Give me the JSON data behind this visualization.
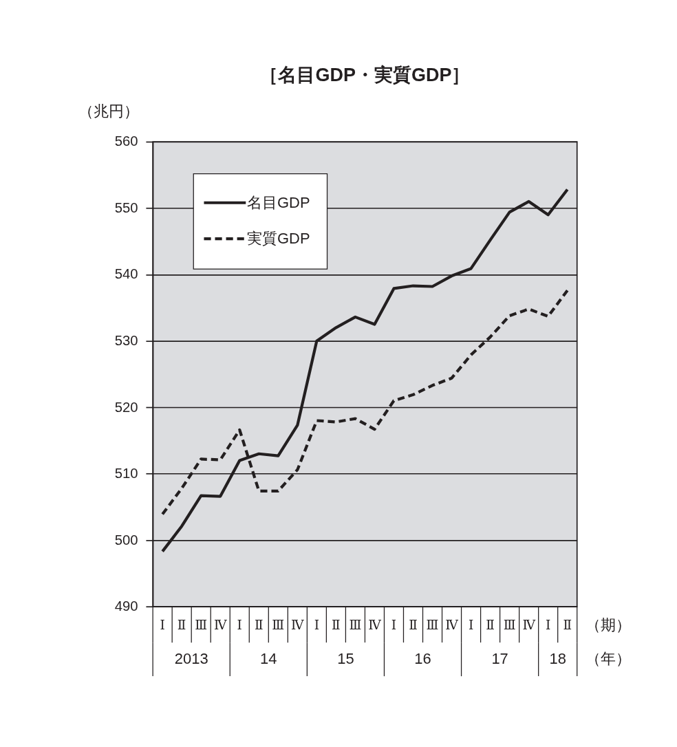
{
  "chart_data": {
    "type": "line",
    "title": "［名目GDP・実質GDP］",
    "ylabel": "（兆円）",
    "xlabel": "（期）",
    "categories": [
      "Ⅰ",
      "Ⅱ",
      "Ⅲ",
      "Ⅳ",
      "Ⅰ",
      "Ⅱ",
      "Ⅲ",
      "Ⅳ",
      "Ⅰ",
      "Ⅱ",
      "Ⅲ",
      "Ⅳ",
      "Ⅰ",
      "Ⅱ",
      "Ⅲ",
      "Ⅳ",
      "Ⅰ",
      "Ⅱ",
      "Ⅲ",
      "Ⅳ",
      "Ⅰ",
      "Ⅱ"
    ],
    "series": [
      {
        "name": "名目GDP",
        "color": "#231f20",
        "line_style": "solid",
        "values": [
          498.3,
          502.1,
          506.7,
          506.6,
          512.0,
          513.0,
          512.7,
          517.3,
          530.0,
          532.0,
          533.6,
          532.5,
          537.9,
          538.3,
          538.2,
          539.8,
          540.9,
          545.2,
          549.4,
          551.0,
          549.0,
          552.8
        ]
      },
      {
        "name": "実質GDP",
        "color": "#231f20",
        "line_style": "dashed",
        "values": [
          503.9,
          507.8,
          512.2,
          512.1,
          516.6,
          507.4,
          507.4,
          510.6,
          518.0,
          517.8,
          518.3,
          516.7,
          521.0,
          521.9,
          523.3,
          524.4,
          527.9,
          530.6,
          533.8,
          534.8,
          533.7,
          537.6
        ]
      }
    ],
    "annotations": [
      "2013",
      "14",
      "15",
      "16",
      "17",
      "18",
      "（年）"
    ],
    "ylim": [
      490,
      560
    ],
    "yticks": [
      490,
      500,
      510,
      520,
      530,
      540,
      550,
      560
    ],
    "grid": "y",
    "legend": "top left",
    "marker": "none"
  }
}
